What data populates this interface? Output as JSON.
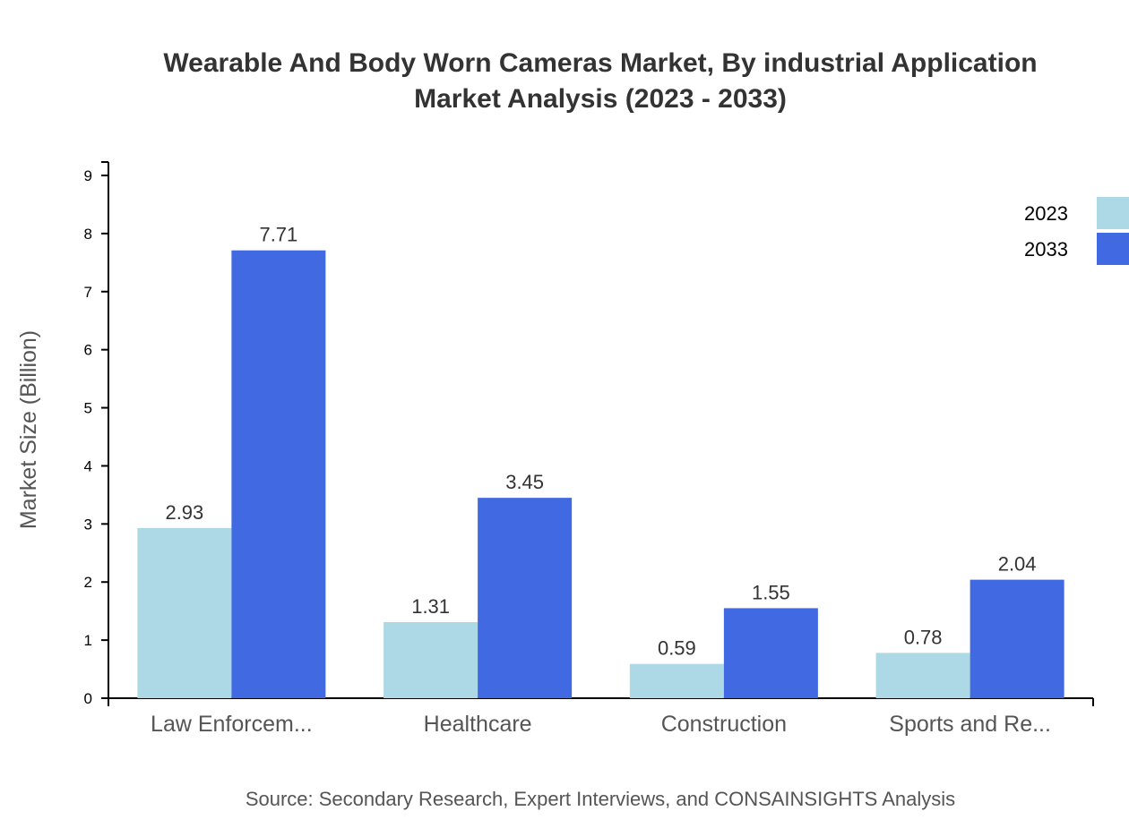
{
  "chart_data": {
    "type": "bar",
    "title": "Wearable And Body Worn Cameras Market, By industrial Application",
    "subtitle": "Market Analysis (2023 - 2033)",
    "xlabel": "",
    "ylabel": "Market Size (Billion)",
    "ylim": [
      0,
      9
    ],
    "yticks": [
      0,
      1,
      2,
      3,
      4,
      5,
      6,
      7,
      8,
      9
    ],
    "categories": [
      "Law Enforcem...",
      "Healthcare",
      "Construction",
      "Sports and Re..."
    ],
    "series": [
      {
        "name": "2023",
        "color": "#add8e6",
        "values": [
          2.93,
          1.31,
          0.59,
          0.78
        ]
      },
      {
        "name": "2033",
        "color": "#4169e1",
        "values": [
          7.71,
          3.45,
          1.55,
          2.04
        ]
      }
    ],
    "legend_position": "top-right",
    "grid": false,
    "source": "Source: Secondary Research, Expert Interviews, and CONSAINSIGHTS Analysis"
  }
}
